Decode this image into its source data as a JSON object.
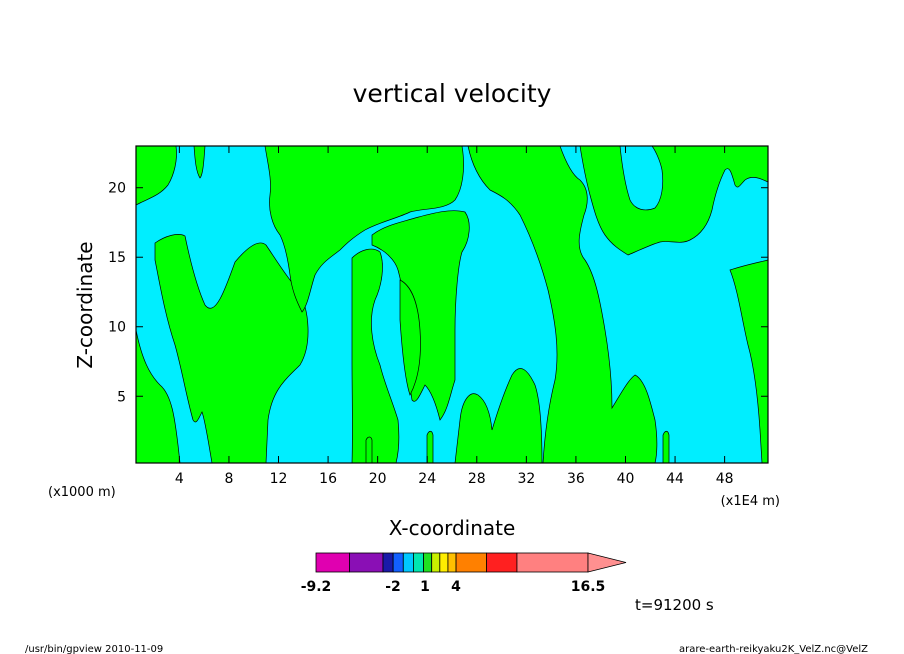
{
  "chart_data": {
    "type": "heatmap",
    "title": "vertical velocity",
    "xlabel": "X-coordinate",
    "ylabel": "Z-coordinate",
    "x_unit": "(x1E4 m)",
    "y_unit": "(x1000 m)",
    "x_ticks": [
      4,
      8,
      12,
      16,
      20,
      24,
      28,
      32,
      36,
      40,
      44,
      48
    ],
    "y_ticks": [
      5,
      10,
      15,
      20
    ],
    "xlim": [
      0.5,
      51.5
    ],
    "ylim": [
      0.2,
      23
    ],
    "grid": false,
    "colorbar": {
      "colors": [
        "#e000b0",
        "#8a0fb5",
        "#1a1aa8",
        "#1260ff",
        "#00c8ff",
        "#00e6b0",
        "#20e020",
        "#c8f000",
        "#ffee00",
        "#ffc000",
        "#ff8000",
        "#ff2020",
        "#ff8080"
      ],
      "tick_labels": [
        "-9.2",
        "-2",
        "1",
        "4",
        "16.5"
      ],
      "tick_values": [
        -9.2,
        -2,
        1,
        4,
        16.5
      ]
    },
    "regions": {
      "positive_color": "#00ff00",
      "negative_color": "#00eeff",
      "description_levels": "two-tone contour fill"
    },
    "time_label": "t=91200 s"
  },
  "footer": {
    "left": "/usr/bin/gpview   2010-11-09",
    "right": "arare-earth-reikyaku2K_VelZ.nc@VelZ"
  }
}
